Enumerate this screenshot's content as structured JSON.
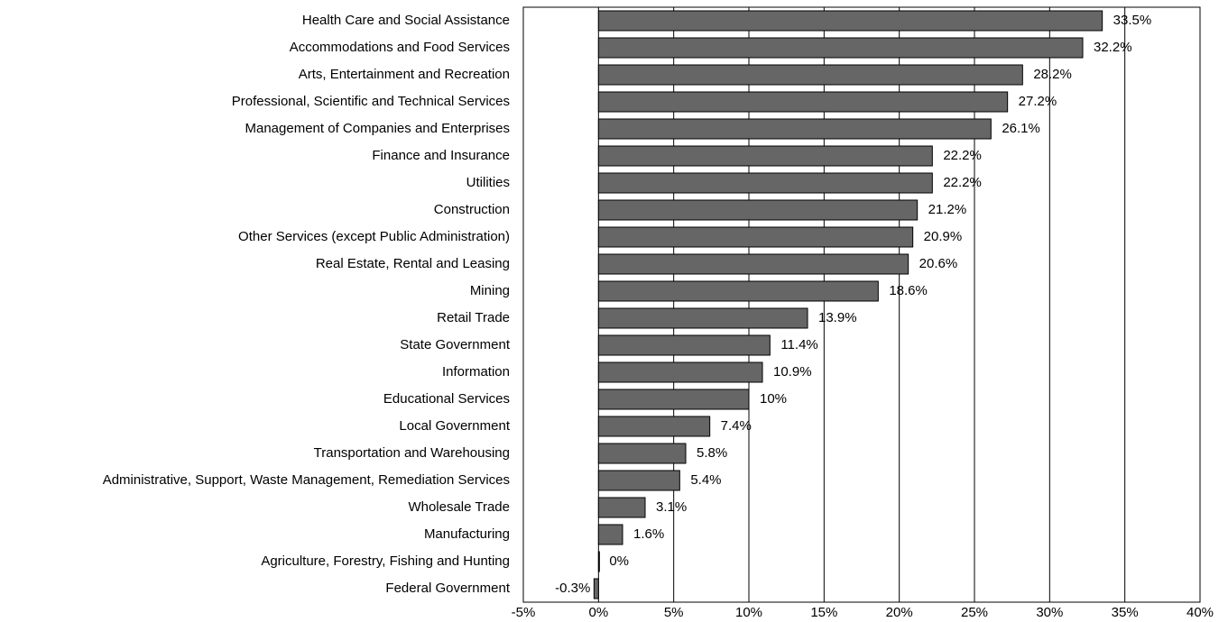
{
  "chart_data": {
    "type": "bar",
    "orientation": "horizontal",
    "categories": [
      "Health Care and Social Assistance",
      "Accommodations and Food Services",
      "Arts, Entertainment and Recreation",
      "Professional, Scientific and Technical Services",
      "Management of Companies and Enterprises",
      "Finance and Insurance",
      "Utilities",
      "Construction",
      "Other Services (except Public Administration)",
      "Real Estate, Rental and Leasing",
      "Mining",
      "Retail Trade",
      "State Government",
      "Information",
      "Educational Services",
      "Local Government",
      "Transportation and Warehousing",
      "Administrative, Support, Waste Management, Remediation Services",
      "Wholesale Trade",
      "Manufacturing",
      "Agriculture, Forestry, Fishing and Hunting",
      "Federal Government"
    ],
    "values": [
      33.5,
      32.2,
      28.2,
      27.2,
      26.1,
      22.2,
      22.2,
      21.2,
      20.9,
      20.6,
      18.6,
      13.9,
      11.4,
      10.9,
      10,
      7.4,
      5.8,
      5.4,
      3.1,
      1.6,
      0,
      -0.3
    ],
    "value_labels": [
      "33.5%",
      "32.2%",
      "28.2%",
      "27.2%",
      "26.1%",
      "22.2%",
      "22.2%",
      "21.2%",
      "20.9%",
      "20.6%",
      "18.6%",
      "13.9%",
      "11.4%",
      "10.9%",
      "10%",
      "7.4%",
      "5.8%",
      "5.4%",
      "3.1%",
      "1.6%",
      "0%",
      "-0.3%"
    ],
    "color": "#666666",
    "xlim": [
      -5,
      40
    ],
    "xticks": [
      {
        "value": -5,
        "label": "-5%"
      },
      {
        "value": 0,
        "label": "0%"
      },
      {
        "value": 5,
        "label": "5%"
      },
      {
        "value": 10,
        "label": "10%"
      },
      {
        "value": 15,
        "label": "15%"
      },
      {
        "value": 20,
        "label": "20%"
      },
      {
        "value": 25,
        "label": "25%"
      },
      {
        "value": 30,
        "label": "30%"
      },
      {
        "value": 35,
        "label": "35%"
      },
      {
        "value": 40,
        "label": "40%"
      }
    ],
    "grid": true
  }
}
